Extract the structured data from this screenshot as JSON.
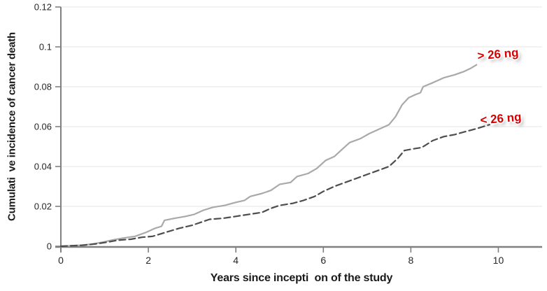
{
  "chart_data": {
    "type": "line",
    "title": "",
    "xlabel": "Years since incepti  on of the study",
    "ylabel": "Cumulati  ve incidence of cancer death",
    "xlim": [
      0,
      11
    ],
    "ylim": [
      0,
      0.12
    ],
    "x_ticks": [
      0,
      2,
      4,
      6,
      8,
      10
    ],
    "x_tick_labels": [
      "0",
      "2",
      "4",
      "6",
      "8",
      "10"
    ],
    "y_ticks": [
      0,
      0.02,
      0.04,
      0.06,
      0.08,
      0.1,
      0.12
    ],
    "y_tick_labels": [
      "0",
      "0.02",
      "0.04",
      "0.06",
      "0.08",
      "0.1",
      "0.12"
    ],
    "grid": "horizontal",
    "legend_position": "inline-annotations",
    "series": [
      {
        "name": "> 26 ng",
        "style": "solid",
        "color": "#a9a9a9",
        "points": [
          [
            0,
            0
          ],
          [
            0.45,
            0.0005
          ],
          [
            0.7,
            0.001
          ],
          [
            0.95,
            0.002
          ],
          [
            1.15,
            0.003
          ],
          [
            1.4,
            0.004
          ],
          [
            1.7,
            0.005
          ],
          [
            1.95,
            0.007
          ],
          [
            2.15,
            0.009
          ],
          [
            2.3,
            0.01
          ],
          [
            2.37,
            0.013
          ],
          [
            2.6,
            0.014
          ],
          [
            2.85,
            0.015
          ],
          [
            3.05,
            0.016
          ],
          [
            3.25,
            0.018
          ],
          [
            3.47,
            0.0195
          ],
          [
            3.75,
            0.0205
          ],
          [
            4.0,
            0.022
          ],
          [
            4.2,
            0.023
          ],
          [
            4.33,
            0.025
          ],
          [
            4.6,
            0.0265
          ],
          [
            4.8,
            0.028
          ],
          [
            5.0,
            0.031
          ],
          [
            5.25,
            0.032
          ],
          [
            5.4,
            0.035
          ],
          [
            5.65,
            0.0365
          ],
          [
            5.85,
            0.039
          ],
          [
            6.05,
            0.043
          ],
          [
            6.25,
            0.045
          ],
          [
            6.45,
            0.049
          ],
          [
            6.6,
            0.052
          ],
          [
            6.85,
            0.054
          ],
          [
            7.05,
            0.0565
          ],
          [
            7.3,
            0.059
          ],
          [
            7.5,
            0.061
          ],
          [
            7.65,
            0.065
          ],
          [
            7.8,
            0.071
          ],
          [
            7.95,
            0.0745
          ],
          [
            8.1,
            0.076
          ],
          [
            8.22,
            0.077
          ],
          [
            8.28,
            0.08
          ],
          [
            8.5,
            0.082
          ],
          [
            8.75,
            0.0845
          ],
          [
            9.0,
            0.086
          ],
          [
            9.2,
            0.0875
          ],
          [
            9.35,
            0.089
          ],
          [
            9.5,
            0.091
          ]
        ]
      },
      {
        "name": "< 26 ng",
        "style": "dashed",
        "color": "#4d4d4d",
        "points": [
          [
            0,
            0
          ],
          [
            0.5,
            0.0005
          ],
          [
            0.8,
            0.0012
          ],
          [
            1.05,
            0.002
          ],
          [
            1.3,
            0.003
          ],
          [
            1.6,
            0.0035
          ],
          [
            1.85,
            0.0045
          ],
          [
            2.1,
            0.005
          ],
          [
            2.4,
            0.007
          ],
          [
            2.7,
            0.009
          ],
          [
            3.0,
            0.0105
          ],
          [
            3.2,
            0.012
          ],
          [
            3.4,
            0.0135
          ],
          [
            3.7,
            0.014
          ],
          [
            4.0,
            0.015
          ],
          [
            4.3,
            0.016
          ],
          [
            4.6,
            0.017
          ],
          [
            4.8,
            0.019
          ],
          [
            5.0,
            0.0205
          ],
          [
            5.3,
            0.0215
          ],
          [
            5.55,
            0.023
          ],
          [
            5.8,
            0.025
          ],
          [
            6.0,
            0.0275
          ],
          [
            6.25,
            0.03
          ],
          [
            6.5,
            0.032
          ],
          [
            6.75,
            0.034
          ],
          [
            7.0,
            0.036
          ],
          [
            7.25,
            0.038
          ],
          [
            7.5,
            0.04
          ],
          [
            7.7,
            0.044
          ],
          [
            7.85,
            0.048
          ],
          [
            8.1,
            0.049
          ],
          [
            8.25,
            0.0495
          ],
          [
            8.5,
            0.053
          ],
          [
            8.75,
            0.055
          ],
          [
            9.0,
            0.056
          ],
          [
            9.25,
            0.0575
          ],
          [
            9.5,
            0.059
          ],
          [
            9.8,
            0.061
          ]
        ]
      }
    ],
    "annotations": [
      {
        "text": "> 26 ng",
        "x": 9.99,
        "y": 0.0961,
        "color": "#d60000"
      },
      {
        "text": "< 26 ng",
        "x": 10.06,
        "y": 0.0639,
        "color": "#d60000"
      }
    ]
  },
  "colors": {
    "background": "#ffffff",
    "axis": "#808080",
    "gridline": "#ededed",
    "tick_text": "#262626",
    "annotation_red": "#d60000"
  }
}
